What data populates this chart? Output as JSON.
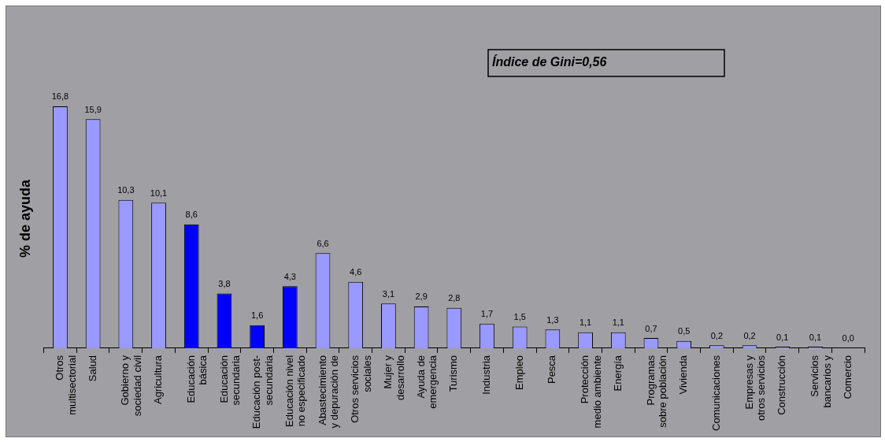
{
  "chart_data": {
    "type": "bar",
    "ylabel": "% de ayuda",
    "categories": [
      "Otros\nmultisectorial",
      "Salud",
      "Gobierno y\nsociedad civil",
      "Agricultura",
      "Educación\nbásica",
      "Educación\nsecundaria",
      "Educación post-\nsecundaria",
      "Educación nivel\nno especificado",
      "Abastecimiento\ny depuración de",
      "Otros servicios\nsociales",
      "Mujer y\ndesarrollo",
      "Ayuda de\nemergencia",
      "Turismo",
      "Industria",
      "Empleo",
      "Pesca",
      "Protección\nmedio ambiente",
      "Energía",
      "Programas\nsobre población",
      "Vivienda",
      "Comunicaciones",
      "Empresas y\notros servicios",
      "Construcción",
      "Servicios\nbancarios y",
      "Comercio"
    ],
    "values": [
      16.8,
      15.9,
      10.3,
      10.1,
      8.6,
      3.8,
      1.6,
      4.3,
      6.6,
      4.6,
      3.1,
      2.9,
      2.8,
      1.7,
      1.5,
      1.3,
      1.1,
      1.1,
      0.7,
      0.5,
      0.2,
      0.2,
      0.1,
      0.1,
      0.0
    ],
    "value_labels": [
      "16,8",
      "15,9",
      "10,3",
      "10,1",
      "8,6",
      "3,8",
      "1,6",
      "4,3",
      "6,6",
      "4,6",
      "3,1",
      "2,9",
      "2,8",
      "1,7",
      "1,5",
      "1,3",
      "1,1",
      "1,1",
      "0,7",
      "0,5",
      "0,2",
      "0,2",
      "0,1",
      "0,1",
      "0,0"
    ],
    "colors": [
      "#9999ff",
      "#9999ff",
      "#9999ff",
      "#9999ff",
      "#0000ff",
      "#0000ff",
      "#0000ff",
      "#0000ff",
      "#9999ff",
      "#9999ff",
      "#9999ff",
      "#9999ff",
      "#9999ff",
      "#9999ff",
      "#9999ff",
      "#9999ff",
      "#9999ff",
      "#9999ff",
      "#9999ff",
      "#9999ff",
      "#9999ff",
      "#9999ff",
      "#9999ff",
      "#9999ff",
      "#9999ff"
    ],
    "annotations": [
      "Índice de Gini=0,56"
    ],
    "grid": false,
    "legend": false
  }
}
